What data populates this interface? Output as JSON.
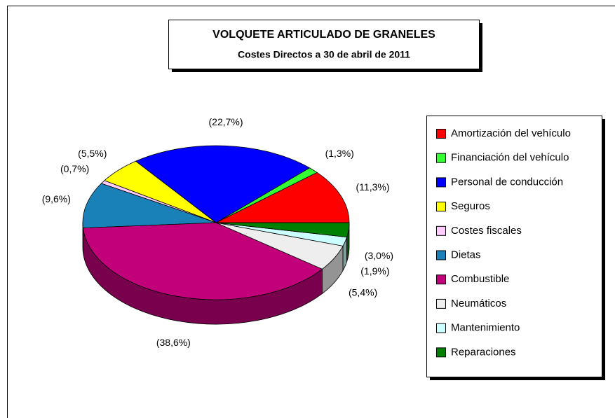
{
  "chart_data": {
    "type": "pie",
    "title": "VOLQUETE ARTICULADO DE GRANELES",
    "subtitle": "Costes Directos a 30 de abril de 2011",
    "categories": [
      "Amortización del vehículo",
      "Financiación del vehículo",
      "Personal de conducción",
      "Seguros",
      "Costes fiscales",
      "Dietas",
      "Combustible",
      "Neumáticos",
      "Mantenimiento",
      "Reparaciones"
    ],
    "values": [
      11.3,
      1.3,
      22.7,
      5.5,
      0.7,
      9.6,
      38.6,
      5.4,
      1.9,
      3.0
    ],
    "value_labels": [
      "(11,3%)",
      "(1,3%)",
      "(22,7%)",
      "(5,5%)",
      "(0,7%)",
      "(9,6%)",
      "(38,6%)",
      "(5,4%)",
      "(1,9%)",
      "(3,0%)"
    ],
    "colors": [
      "#ff0000",
      "#33ff33",
      "#0000ff",
      "#ffff00",
      "#ffccff",
      "#1a80b8",
      "#c2007a",
      "#eeeeee",
      "#ccffff",
      "#008000"
    ],
    "legend": "right"
  }
}
